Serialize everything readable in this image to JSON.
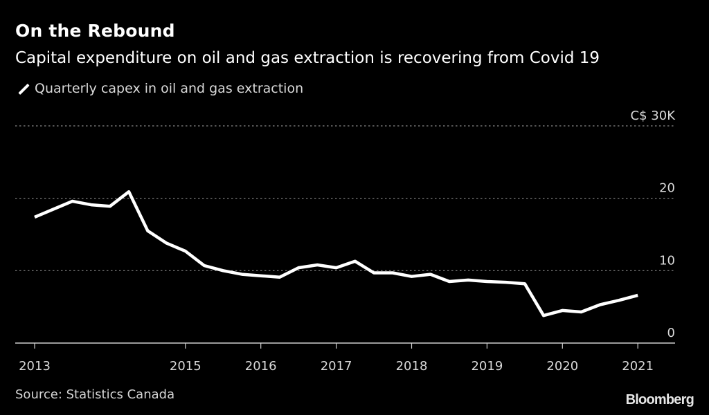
{
  "title": "On the Rebound",
  "subtitle": "Capital expenditure on oil and gas extraction is recovering from Covid 19",
  "legend": [
    {
      "label": "Quarterly capex in oil and gas extraction",
      "color": "#ffffff",
      "icon": "line-swatch-icon"
    }
  ],
  "source": "Source: Statistics Canada",
  "brand": "Bloomberg",
  "chart_data": {
    "type": "line",
    "title": "On the Rebound",
    "subtitle": "Capital expenditure on oil and gas extraction is recovering from Covid 19",
    "xlabel": "",
    "ylabel": "C$ thousands",
    "x_start": 2013.0,
    "x_step": 0.25,
    "xlim": [
      2012.75,
      2021.98
    ],
    "ylim": [
      0,
      30
    ],
    "grid": true,
    "legend_position": "top-left",
    "y_axis_side": "right",
    "y_ticks": [
      {
        "value": 30,
        "label": "C$ 30K"
      },
      {
        "value": 20,
        "label": "20"
      },
      {
        "value": 10,
        "label": "10"
      },
      {
        "value": 0,
        "label": "0"
      }
    ],
    "x_ticks": [
      {
        "value": 2013,
        "label": "2013"
      },
      {
        "value": 2015,
        "label": "2015"
      },
      {
        "value": 2016,
        "label": "2016"
      },
      {
        "value": 2017,
        "label": "2017"
      },
      {
        "value": 2018,
        "label": "2018"
      },
      {
        "value": 2019,
        "label": "2019"
      },
      {
        "value": 2020,
        "label": "2020"
      },
      {
        "value": 2021,
        "label": "2021"
      }
    ],
    "series": [
      {
        "name": "Quarterly capex in oil and gas extraction",
        "color": "#ffffff",
        "values": [
          17.4,
          18.5,
          19.6,
          19.1,
          18.9,
          20.9,
          15.5,
          13.8,
          12.7,
          10.7,
          10.0,
          9.5,
          9.3,
          9.1,
          10.4,
          10.8,
          10.4,
          11.3,
          9.7,
          9.7,
          9.2,
          9.5,
          8.5,
          8.7,
          8.5,
          8.4,
          8.2,
          3.8,
          4.5,
          4.3,
          5.3,
          5.9,
          6.6
        ]
      }
    ]
  }
}
